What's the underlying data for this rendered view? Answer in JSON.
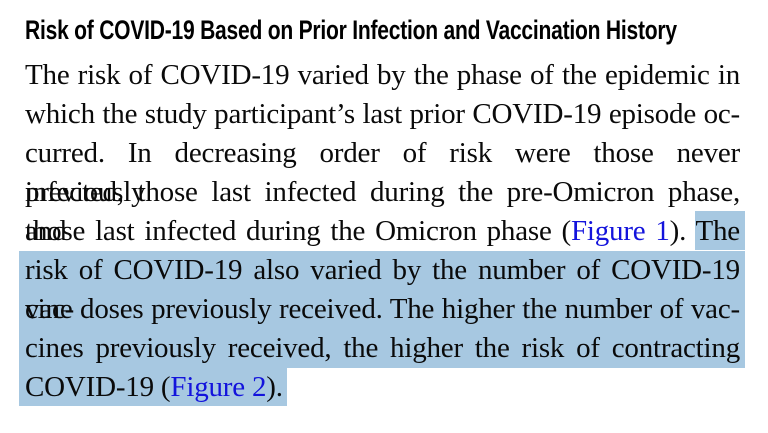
{
  "heading": {
    "text": "Risk of COVID-19 Based on Prior Infection and Vaccination History"
  },
  "paragraph": {
    "lines": [
      {
        "text": "The risk of COVID-19 varied by the phase of the epidemic in"
      },
      {
        "text": "which the study participant’s last prior COVID-19 episode oc-"
      },
      {
        "text": "curred. In decreasing order of risk were those never previously"
      },
      {
        "text": "infected, those last infected during the pre-Omicron phase, and"
      },
      {
        "pre": "those last infected during the Omicron phase (",
        "link": "Figure 1",
        "mid": "). ",
        "highlight": "The"
      },
      {
        "text": "risk of COVID-19 also varied by the number of COVID-19 vac-"
      },
      {
        "text": "cine doses previously received. The higher the number of vac-"
      },
      {
        "text": "cines previously received, the higher the risk of contracting"
      },
      {
        "pre": "COVID-19 (",
        "link": "Figure 2",
        "post": ")."
      }
    ]
  },
  "colors": {
    "selection_highlight": "#a7c8e1",
    "link_blue": "#1313dc",
    "body_text": "#0a0a0a",
    "heading_text": "#000000",
    "background": "#ffffff"
  }
}
